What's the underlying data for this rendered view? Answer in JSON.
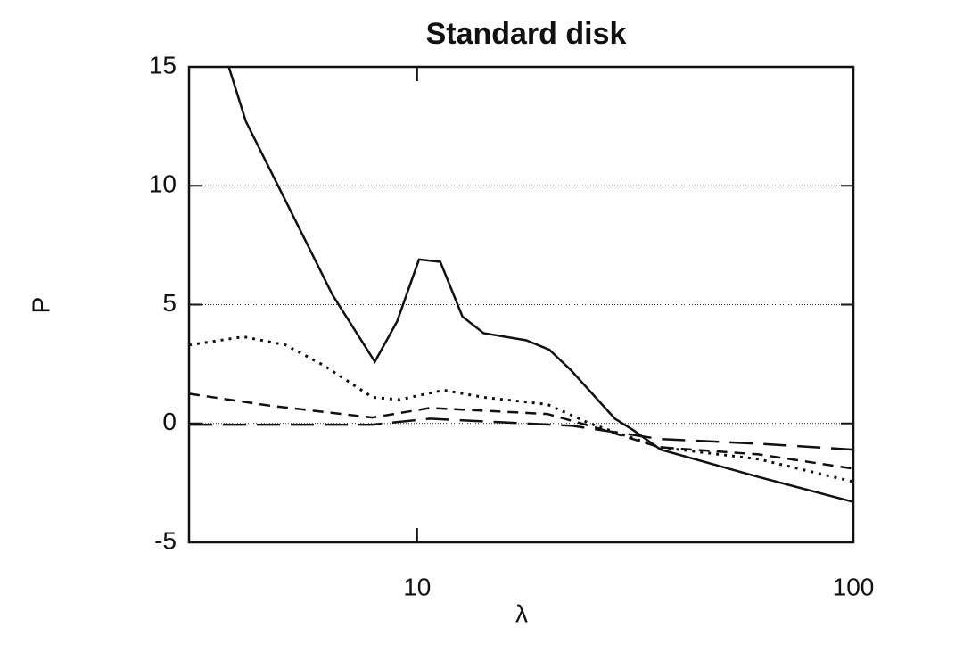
{
  "chart_data": {
    "type": "line",
    "title": "Standard disk",
    "x_label": "λ",
    "y_label": "P",
    "xscale": "log",
    "xlim": [
      3,
      100
    ],
    "xticks": [
      10,
      100
    ],
    "ylim": [
      -5,
      15
    ],
    "yticks": [
      -5,
      0,
      5,
      10,
      15
    ],
    "grid": true,
    "series": [
      {
        "color": "#111111",
        "dash": "solid",
        "x": [
          3.7,
          4.05,
          4.8,
          6.4,
          8.0,
          9.0,
          10.1,
          11.3,
          12.7,
          14.2,
          17.8,
          20.1,
          22.5,
          28.4,
          31.4,
          36.2,
          60.6,
          100
        ],
        "values": [
          15,
          12.7,
          10,
          5.4,
          2.6,
          4.3,
          6.9,
          6.8,
          4.5,
          3.8,
          3.5,
          3.1,
          2.25,
          0.2,
          -0.3,
          -1.1,
          -2.25,
          -3.3
        ]
      },
      {
        "color": "#111111",
        "dash": "dotted",
        "x": [
          3,
          4.0,
          5.0,
          6.1,
          7.9,
          9.1,
          11.5,
          14.2,
          19.9,
          24.9,
          36,
          60.6,
          100
        ],
        "values": [
          3.3,
          3.65,
          3.3,
          2.45,
          1.1,
          1.0,
          1.4,
          1.1,
          0.8,
          0,
          -1,
          -1.5,
          -2.45
        ]
      },
      {
        "color": "#111111",
        "dash": "short-dash",
        "x": [
          3,
          4.6,
          7.9,
          10.7,
          19.9,
          24.9,
          36,
          60.6,
          100
        ],
        "values": [
          1.25,
          0.75,
          0.25,
          0.65,
          0.4,
          -0.1,
          -1.0,
          -1.3,
          -1.9
        ]
      },
      {
        "color": "#111111",
        "dash": "long-dash",
        "x": [
          3,
          7.9,
          10.7,
          15.6,
          22.7,
          36,
          60.6,
          100
        ],
        "values": [
          -0.05,
          -0.05,
          0.2,
          0.05,
          -0.1,
          -0.65,
          -0.85,
          -1.1
        ]
      }
    ]
  }
}
